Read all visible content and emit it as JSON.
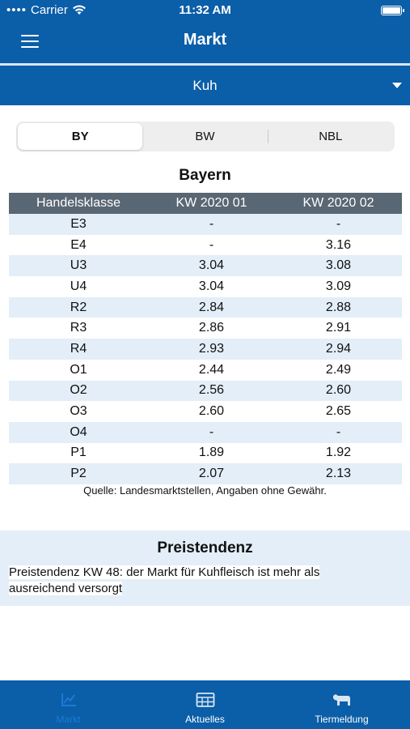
{
  "status": {
    "carrier": "Carrier",
    "time": "11:32 AM"
  },
  "nav": {
    "title": "Markt"
  },
  "picker": {
    "value": "Kuh"
  },
  "segments": [
    {
      "label": "BY",
      "active": true
    },
    {
      "label": "BW",
      "active": false
    },
    {
      "label": "NBL",
      "active": false
    }
  ],
  "region": {
    "title": "Bayern"
  },
  "table": {
    "headers": [
      "Handelsklasse",
      "KW 2020 01",
      "KW 2020 02"
    ],
    "rows": [
      [
        "E3",
        "-",
        "-"
      ],
      [
        "E4",
        "-",
        "3.16"
      ],
      [
        "U3",
        "3.04",
        "3.08"
      ],
      [
        "U4",
        "3.04",
        "3.09"
      ],
      [
        "R2",
        "2.84",
        "2.88"
      ],
      [
        "R3",
        "2.86",
        "2.91"
      ],
      [
        "R4",
        "2.93",
        "2.94"
      ],
      [
        "O1",
        "2.44",
        "2.49"
      ],
      [
        "O2",
        "2.56",
        "2.60"
      ],
      [
        "O3",
        "2.60",
        "2.65"
      ],
      [
        "O4",
        "-",
        "-"
      ],
      [
        "P1",
        "1.89",
        "1.92"
      ],
      [
        "P2",
        "2.07",
        "2.13"
      ]
    ]
  },
  "source": "Quelle: Landesmarktstellen, Angaben ohne Gewähr.",
  "trend": {
    "title": "Preistendenz",
    "text_line1": "Preistendenz KW 48: der Markt für Kuhfleisch ist mehr als",
    "text_line2": "ausreichend versorgt"
  },
  "tabs": [
    {
      "label": "Markt",
      "icon": "chart-icon",
      "active": true
    },
    {
      "label": "Aktuelles",
      "icon": "newspaper-icon",
      "active": false
    },
    {
      "label": "Tiermeldung",
      "icon": "cow-icon",
      "active": false
    }
  ],
  "colors": {
    "primary": "#0b5ea8",
    "header_row": "#596673",
    "stripe": "#e3eef8",
    "active_tab": "#1a7bd6"
  }
}
